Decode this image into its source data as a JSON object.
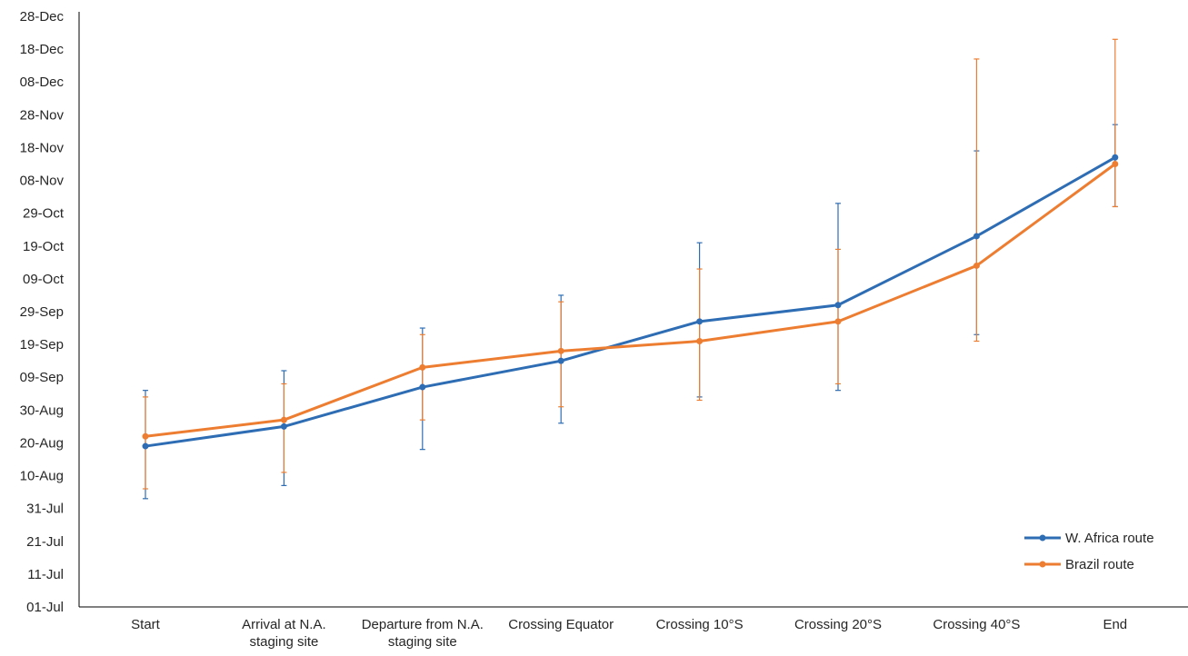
{
  "chart_data": {
    "type": "line",
    "title": "",
    "xlabel": "",
    "ylabel": "",
    "categories": [
      [
        "Start"
      ],
      [
        "Arrival at N.A.",
        "staging site"
      ],
      [
        "Departure from N.A.",
        "staging site"
      ],
      [
        "Crossing Equator"
      ],
      [
        "Crossing 10°S"
      ],
      [
        "Crossing 20°S"
      ],
      [
        "Crossing 40°S"
      ],
      [
        "End"
      ]
    ],
    "y_ticks": [
      "01-Jul",
      "11-Jul",
      "21-Jul",
      "31-Jul",
      "10-Aug",
      "20-Aug",
      "30-Aug",
      "09-Sep",
      "19-Sep",
      "29-Sep",
      "09-Oct",
      "19-Oct",
      "29-Oct",
      "08-Nov",
      "18-Nov",
      "28-Nov",
      "08-Dec",
      "18-Dec",
      "28-Dec"
    ],
    "ylim": [
      "2000-07-01",
      "2000-12-28"
    ],
    "legend_position": "bottom-right",
    "grid": false,
    "series": [
      {
        "name": "W. Africa route",
        "color": "#2e6db4",
        "values": [
          "2000-08-19",
          "2000-08-25",
          "2000-09-06",
          "2000-09-14",
          "2000-09-26",
          "2000-10-01",
          "2000-10-22",
          "2000-11-15"
        ],
        "error_low": [
          "2000-08-03",
          "2000-08-07",
          "2000-08-18",
          "2000-08-26",
          "2000-09-03",
          "2000-09-05",
          "2000-09-22",
          "2000-10-31"
        ],
        "error_high": [
          "2000-09-05",
          "2000-09-11",
          "2000-09-24",
          "2000-10-04",
          "2000-10-20",
          "2000-11-01",
          "2000-11-17",
          "2000-11-25"
        ]
      },
      {
        "name": "Brazil route",
        "color": "#ed7d31",
        "values": [
          "2000-08-22",
          "2000-08-27",
          "2000-09-12",
          "2000-09-17",
          "2000-09-20",
          "2000-09-26",
          "2000-10-13",
          "2000-11-13"
        ],
        "error_low": [
          "2000-08-06",
          "2000-08-11",
          "2000-08-27",
          "2000-08-31",
          "2000-09-02",
          "2000-09-07",
          "2000-09-20",
          "2000-10-31"
        ],
        "error_high": [
          "2000-09-03",
          "2000-09-07",
          "2000-09-22",
          "2000-10-02",
          "2000-10-12",
          "2000-10-18",
          "2000-12-15",
          "2000-12-21"
        ]
      }
    ]
  }
}
